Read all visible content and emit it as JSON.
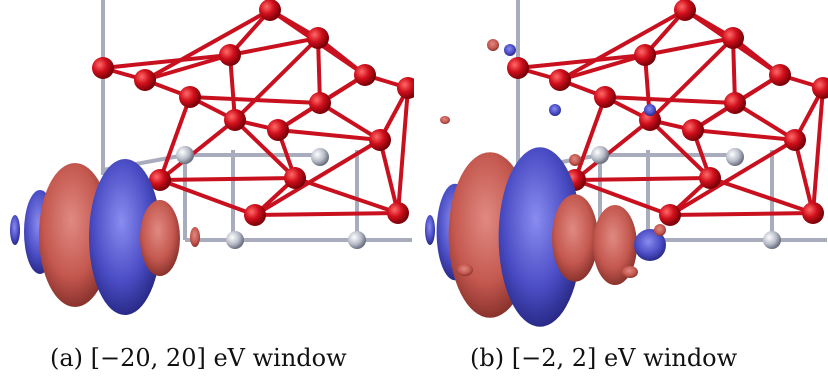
{
  "figure": {
    "panels": [
      {
        "caption": "(a) [−20, 20] eV window"
      },
      {
        "caption": "(b) [−2, 2] eV window"
      }
    ]
  }
}
